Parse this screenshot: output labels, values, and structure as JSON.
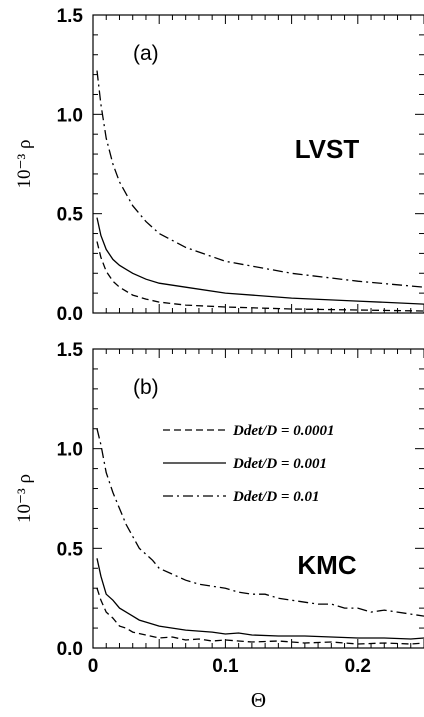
{
  "chart_data": [
    {
      "type": "line",
      "panel_label": "(a)",
      "method_label": "LVST",
      "ylabel": "10⁻³ ρ",
      "xlabel": "",
      "xlim": [
        0,
        0.25
      ],
      "ylim": [
        0,
        1.5
      ],
      "y_ticks": [
        "0.0",
        "0.5",
        "1.0",
        "1.5"
      ],
      "x_ticks": [],
      "series": [
        {
          "dash": "dashed",
          "points": [
            [
              0.003,
              0.36
            ],
            [
              0.006,
              0.28
            ],
            [
              0.01,
              0.21
            ],
            [
              0.015,
              0.16
            ],
            [
              0.02,
              0.13
            ],
            [
              0.03,
              0.09
            ],
            [
              0.04,
              0.07
            ],
            [
              0.05,
              0.055
            ],
            [
              0.07,
              0.04
            ],
            [
              0.1,
              0.03
            ],
            [
              0.15,
              0.02
            ],
            [
              0.2,
              0.015
            ],
            [
              0.25,
              0.01
            ]
          ]
        },
        {
          "dash": "solid",
          "points": [
            [
              0.003,
              0.48
            ],
            [
              0.006,
              0.39
            ],
            [
              0.01,
              0.32
            ],
            [
              0.015,
              0.27
            ],
            [
              0.02,
              0.24
            ],
            [
              0.03,
              0.2
            ],
            [
              0.04,
              0.17
            ],
            [
              0.05,
              0.15
            ],
            [
              0.07,
              0.13
            ],
            [
              0.1,
              0.1
            ],
            [
              0.15,
              0.075
            ],
            [
              0.2,
              0.06
            ],
            [
              0.25,
              0.045
            ]
          ]
        },
        {
          "dash": "dashdot",
          "points": [
            [
              0.003,
              1.22
            ],
            [
              0.006,
              1.05
            ],
            [
              0.01,
              0.88
            ],
            [
              0.015,
              0.75
            ],
            [
              0.02,
              0.66
            ],
            [
              0.03,
              0.54
            ],
            [
              0.04,
              0.46
            ],
            [
              0.05,
              0.4
            ],
            [
              0.07,
              0.33
            ],
            [
              0.1,
              0.26
            ],
            [
              0.15,
              0.2
            ],
            [
              0.2,
              0.16
            ],
            [
              0.25,
              0.13
            ]
          ]
        }
      ]
    },
    {
      "type": "line",
      "panel_label": "(b)",
      "method_label": "KMC",
      "ylabel": "10⁻³ ρ",
      "xlabel": "Θ",
      "xlim": [
        0,
        0.25
      ],
      "ylim": [
        0,
        1.5
      ],
      "y_ticks": [
        "0.0",
        "0.5",
        "1.0",
        "1.5"
      ],
      "x_ticks": [
        "0",
        "0.1",
        "0.2"
      ],
      "legend": [
        {
          "dash": "dashed",
          "label": "Ddet/D = 0.0001"
        },
        {
          "dash": "solid",
          "label": "Ddet/D = 0.001"
        },
        {
          "dash": "dashdot",
          "label": "Ddet/D = 0.01"
        }
      ],
      "series": [
        {
          "dash": "dashed",
          "points": [
            [
              0.003,
              0.3
            ],
            [
              0.006,
              0.24
            ],
            [
              0.01,
              0.18
            ],
            [
              0.015,
              0.15
            ],
            [
              0.02,
              0.11
            ],
            [
              0.025,
              0.1
            ],
            [
              0.03,
              0.08
            ],
            [
              0.04,
              0.065
            ],
            [
              0.05,
              0.05
            ],
            [
              0.06,
              0.055
            ],
            [
              0.07,
              0.04
            ],
            [
              0.08,
              0.045
            ],
            [
              0.09,
              0.035
            ],
            [
              0.1,
              0.04
            ],
            [
              0.12,
              0.03
            ],
            [
              0.14,
              0.035
            ],
            [
              0.16,
              0.025
            ],
            [
              0.18,
              0.03
            ],
            [
              0.2,
              0.02
            ],
            [
              0.22,
              0.025
            ],
            [
              0.24,
              0.02
            ],
            [
              0.25,
              0.025
            ]
          ]
        },
        {
          "dash": "solid",
          "points": [
            [
              0.003,
              0.45
            ],
            [
              0.006,
              0.36
            ],
            [
              0.01,
              0.27
            ],
            [
              0.015,
              0.24
            ],
            [
              0.02,
              0.2
            ],
            [
              0.025,
              0.18
            ],
            [
              0.03,
              0.16
            ],
            [
              0.035,
              0.14
            ],
            [
              0.04,
              0.13
            ],
            [
              0.05,
              0.11
            ],
            [
              0.06,
              0.1
            ],
            [
              0.07,
              0.09
            ],
            [
              0.08,
              0.085
            ],
            [
              0.09,
              0.08
            ],
            [
              0.1,
              0.07
            ],
            [
              0.11,
              0.075
            ],
            [
              0.12,
              0.065
            ],
            [
              0.14,
              0.06
            ],
            [
              0.16,
              0.06
            ],
            [
              0.18,
              0.055
            ],
            [
              0.2,
              0.05
            ],
            [
              0.22,
              0.05
            ],
            [
              0.24,
              0.045
            ],
            [
              0.25,
              0.05
            ]
          ]
        },
        {
          "dash": "dashdot",
          "points": [
            [
              0.003,
              1.1
            ],
            [
              0.006,
              1.02
            ],
            [
              0.01,
              0.88
            ],
            [
              0.015,
              0.78
            ],
            [
              0.02,
              0.7
            ],
            [
              0.025,
              0.62
            ],
            [
              0.03,
              0.56
            ],
            [
              0.035,
              0.5
            ],
            [
              0.04,
              0.47
            ],
            [
              0.045,
              0.44
            ],
            [
              0.05,
              0.4
            ],
            [
              0.06,
              0.37
            ],
            [
              0.07,
              0.34
            ],
            [
              0.08,
              0.32
            ],
            [
              0.09,
              0.31
            ],
            [
              0.1,
              0.3
            ],
            [
              0.11,
              0.28
            ],
            [
              0.12,
              0.27
            ],
            [
              0.13,
              0.27
            ],
            [
              0.14,
              0.25
            ],
            [
              0.15,
              0.24
            ],
            [
              0.16,
              0.23
            ],
            [
              0.17,
              0.22
            ],
            [
              0.18,
              0.22
            ],
            [
              0.19,
              0.2
            ],
            [
              0.2,
              0.2
            ],
            [
              0.21,
              0.18
            ],
            [
              0.22,
              0.19
            ],
            [
              0.23,
              0.18
            ],
            [
              0.24,
              0.17
            ],
            [
              0.25,
              0.16
            ]
          ]
        }
      ]
    }
  ]
}
